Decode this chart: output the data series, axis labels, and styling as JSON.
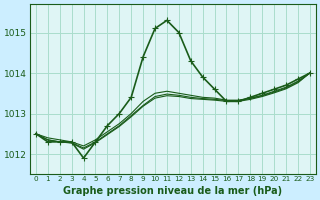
{
  "title": "Graphe pression niveau de la mer (hPa)",
  "background_color": "#cceeff",
  "plot_bg_color": "#dff5f5",
  "grid_color": "#aaddcc",
  "line_color": "#1a5c1a",
  "x_labels": [
    "0",
    "1",
    "2",
    "3",
    "4",
    "5",
    "6",
    "7",
    "8",
    "9",
    "10",
    "11",
    "12",
    "13",
    "14",
    "15",
    "16",
    "17",
    "18",
    "19",
    "20",
    "21",
    "22",
    "23"
  ],
  "ylim": [
    1011.5,
    1015.7
  ],
  "yticks": [
    1012,
    1013,
    1014,
    1015
  ],
  "series": [
    [
      1012.5,
      1012.3,
      1012.3,
      1012.3,
      1011.9,
      1012.3,
      1012.7,
      1013.0,
      1013.4,
      1014.4,
      1015.1,
      1015.3,
      1015.0,
      1014.3,
      1013.9,
      1013.6,
      1013.3,
      1013.3,
      1013.4,
      1013.5,
      1013.6,
      1013.7,
      1013.85,
      1014.0
    ],
    [
      1012.5,
      1012.4,
      1012.35,
      1012.3,
      1012.2,
      1012.35,
      1012.55,
      1012.75,
      1013.0,
      1013.3,
      1013.5,
      1013.55,
      1013.5,
      1013.45,
      1013.4,
      1013.38,
      1013.33,
      1013.33,
      1013.38,
      1013.45,
      1013.55,
      1013.65,
      1013.8,
      1014.0
    ],
    [
      1012.5,
      1012.35,
      1012.3,
      1012.28,
      1012.15,
      1012.3,
      1012.5,
      1012.7,
      1012.95,
      1013.2,
      1013.42,
      1013.48,
      1013.45,
      1013.4,
      1013.37,
      1013.35,
      1013.32,
      1013.32,
      1013.37,
      1013.44,
      1013.53,
      1013.63,
      1013.78,
      1014.0
    ],
    [
      1012.5,
      1012.35,
      1012.3,
      1012.27,
      1012.12,
      1012.28,
      1012.48,
      1012.68,
      1012.92,
      1013.18,
      1013.38,
      1013.44,
      1013.42,
      1013.37,
      1013.35,
      1013.33,
      1013.3,
      1013.3,
      1013.35,
      1013.42,
      1013.51,
      1013.61,
      1013.76,
      1014.0
    ]
  ]
}
